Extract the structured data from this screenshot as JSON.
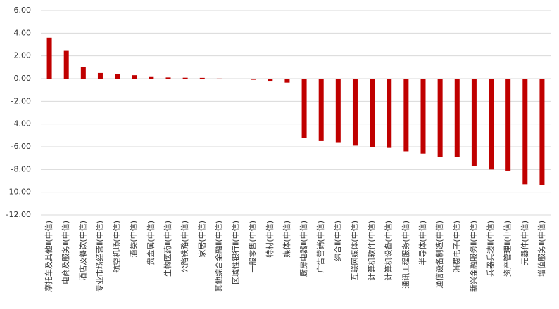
{
  "chart_data": {
    "type": "bar",
    "categories": [
      "摩托车及其他Ⅱ(中信)",
      "电商及服务Ⅱ(中信)",
      "酒店及餐饮(中信)",
      "专业市场经营Ⅱ(中信)",
      "航空机场(中信)",
      "酒类(中信)",
      "贵金属(中信)",
      "生物医药Ⅱ(中信)",
      "公路铁路(中信)",
      "家居(中信)",
      "其他综合金融Ⅱ(中信)",
      "区域性银行Ⅱ(中信)",
      "一般零售(中信)",
      "特材(中信)",
      "媒体(中信)",
      "厨房电器Ⅱ(中信)",
      "广告营销(中信)",
      "综合Ⅱ(中信)",
      "互联网媒体(中信)",
      "计算机软件(中信)",
      "计算机设备(中信)",
      "通讯工程服务(中信)",
      "半导体(中信)",
      "通信设备制造(中信)",
      "消费电子(中信)",
      "新兴金融服务Ⅱ(中信)",
      "兵器兵装Ⅱ(中信)",
      "资产管理Ⅱ(中信)",
      "元器件(中信)",
      "增值服务Ⅱ(中信)"
    ],
    "values": [
      3.6,
      2.5,
      1.0,
      0.5,
      0.4,
      0.3,
      0.2,
      0.1,
      0.08,
      0.07,
      0.01,
      -0.01,
      -0.1,
      -0.25,
      -0.35,
      -5.2,
      -5.5,
      -5.6,
      -5.9,
      -6.0,
      -6.1,
      -6.4,
      -6.6,
      -6.9,
      -6.9,
      -7.7,
      -8.0,
      -8.1,
      -9.3,
      -9.4
    ],
    "color": "#c00000",
    "ylim": [
      -12,
      6
    ],
    "yticks": [
      {
        "value": -12,
        "label": "-12.00"
      },
      {
        "value": -10,
        "label": "-10.00"
      },
      {
        "value": -8,
        "label": "-8.00"
      },
      {
        "value": -6,
        "label": "-6.00"
      },
      {
        "value": -4,
        "label": "-4.00"
      },
      {
        "value": -2,
        "label": "-2.00"
      },
      {
        "value": 0,
        "label": "0.00"
      },
      {
        "value": 2,
        "label": "2.00"
      },
      {
        "value": 4,
        "label": "4.00"
      },
      {
        "value": 6,
        "label": "6.00"
      }
    ],
    "grid": true
  }
}
